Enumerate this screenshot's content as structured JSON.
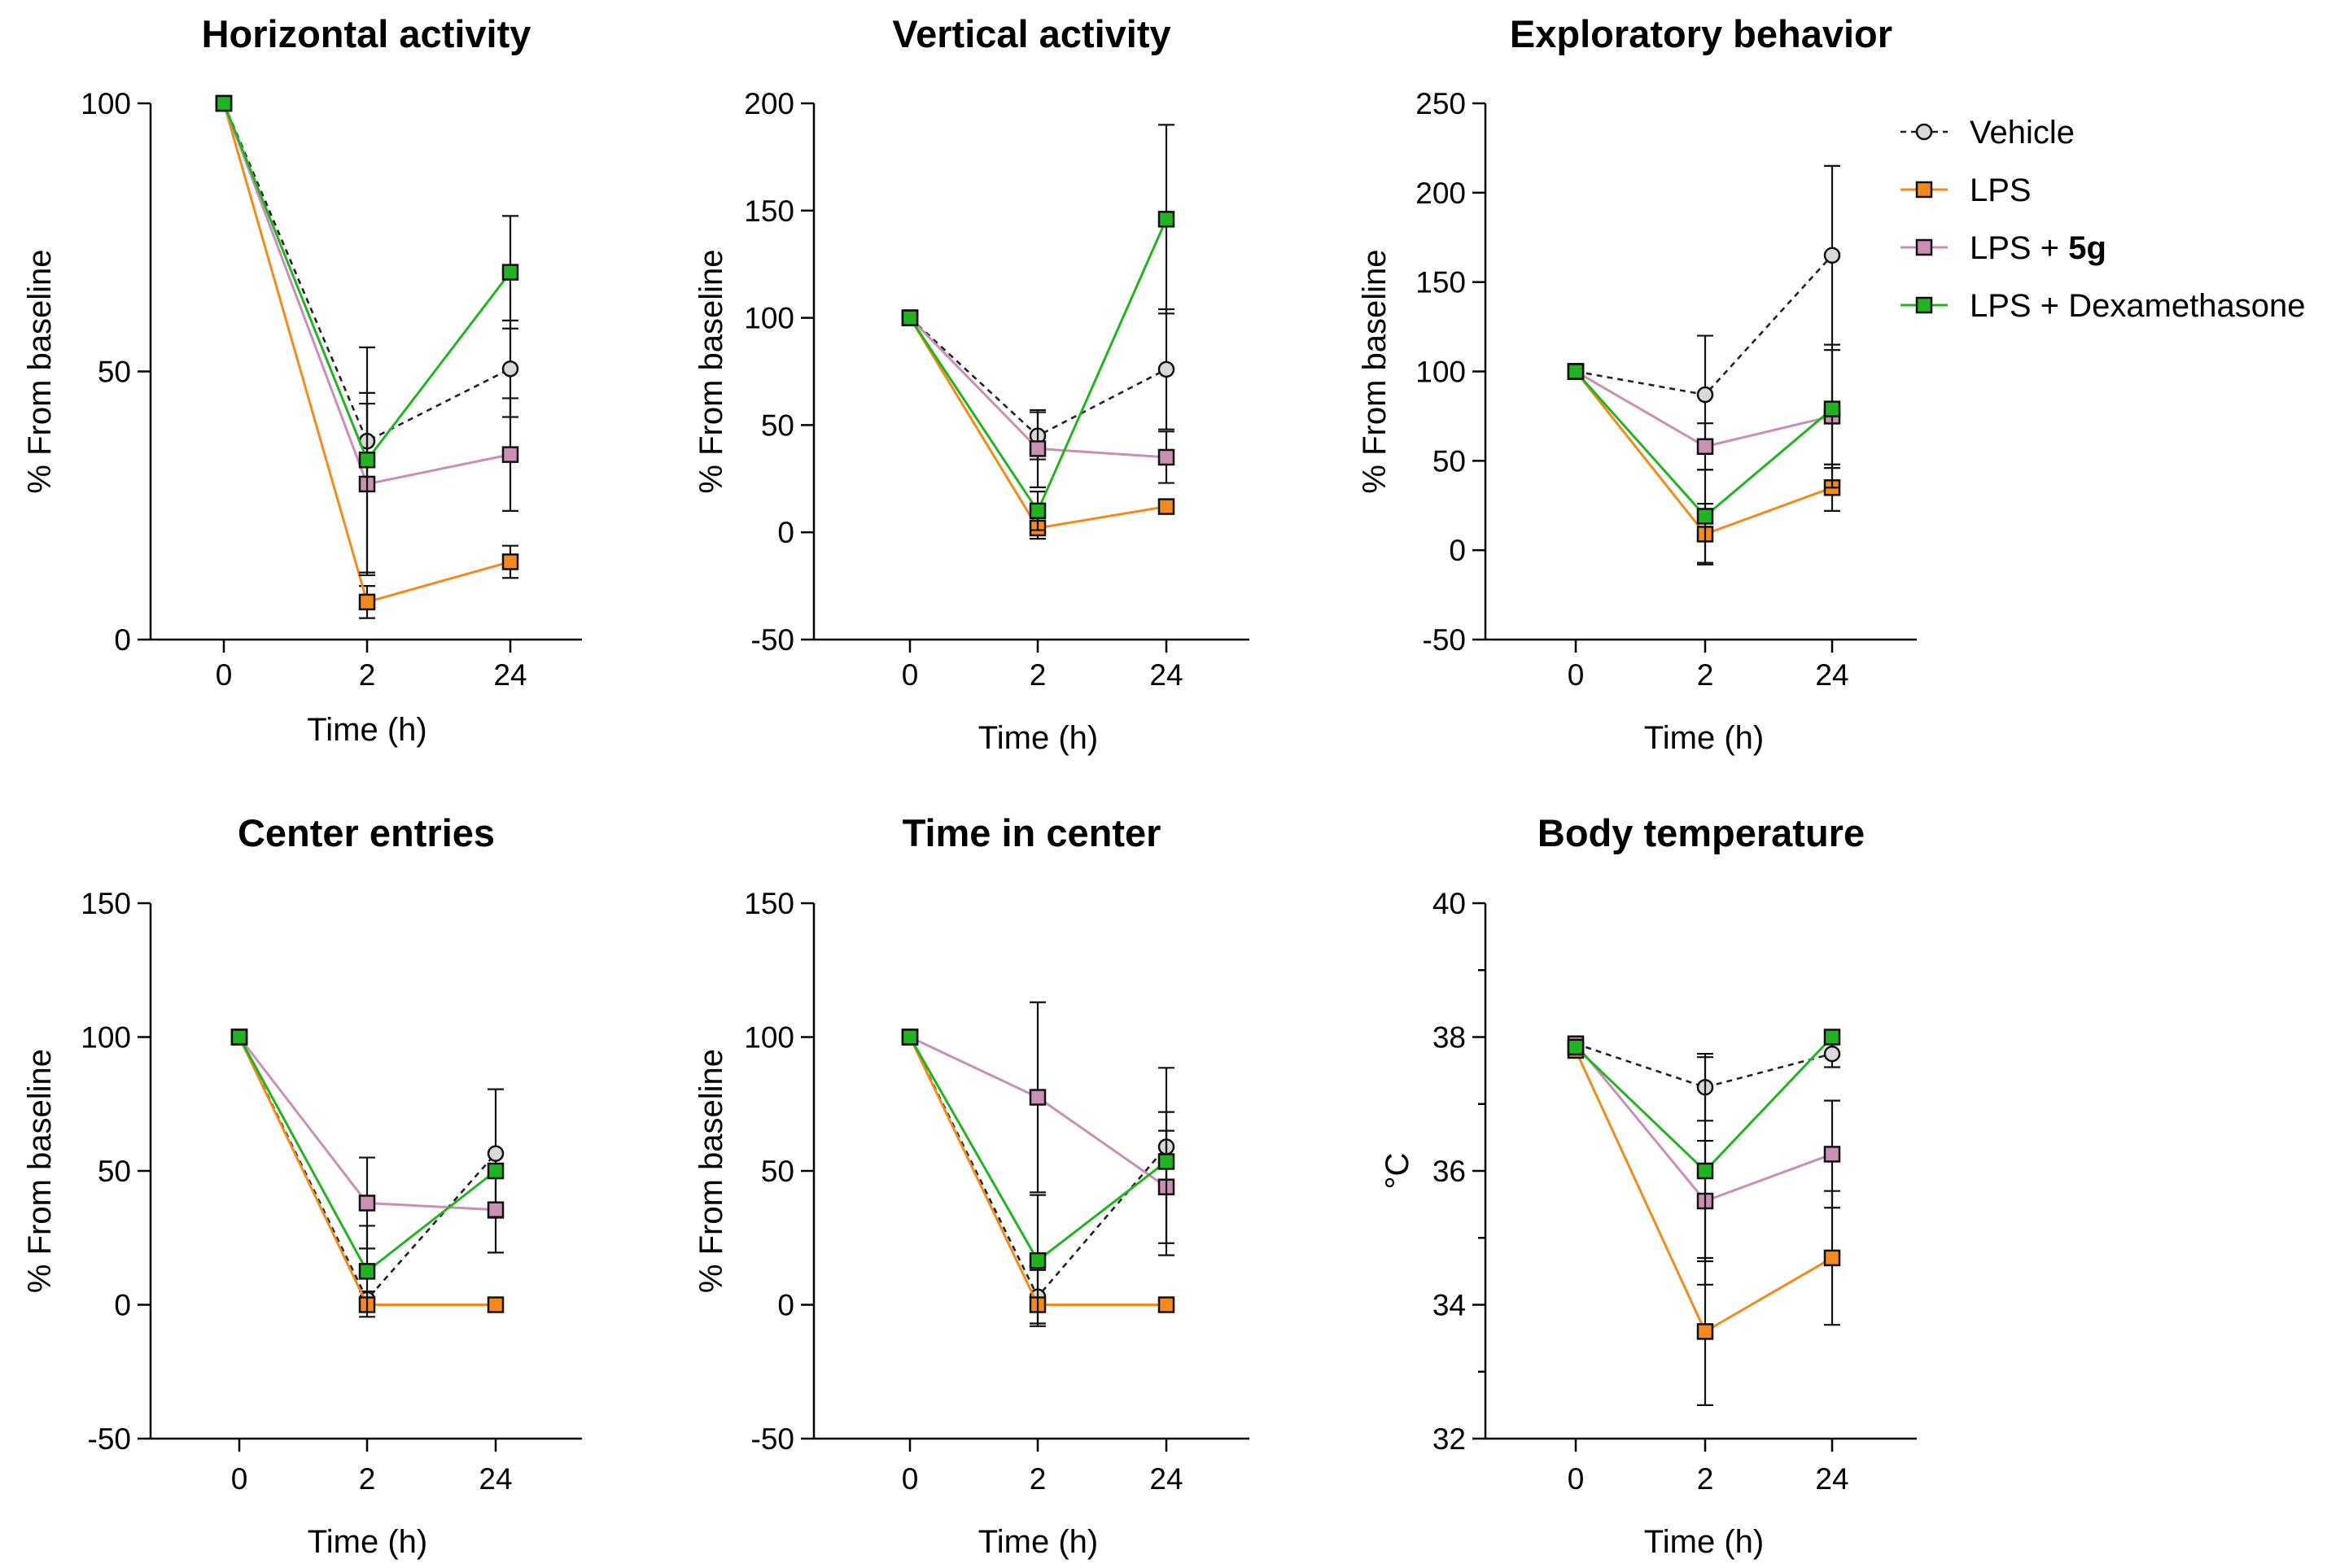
{
  "legend": [
    {
      "name": "Vehicle",
      "prefix": "Vehicle",
      "bold": "",
      "color": "#222222",
      "fill": "#d9d9d9",
      "marker": "circle",
      "dashed": true
    },
    {
      "name": "LPS",
      "prefix": "LPS",
      "bold": "",
      "color": "#f28a1c",
      "fill": "#f28a1c",
      "marker": "square",
      "dashed": false
    },
    {
      "name": "LPS + 5g",
      "prefix": "LPS + ",
      "bold": "5g",
      "color": "#c98fb4",
      "fill": "#c98fb4",
      "marker": "square",
      "dashed": false
    },
    {
      "name": "LPS + Dexamethasone",
      "prefix": "LPS + Dexamethasone",
      "bold": "",
      "color": "#22b322",
      "fill": "#22b322",
      "marker": "square",
      "dashed": false
    }
  ],
  "chart_data": [
    {
      "type": "line",
      "title": "Horizontal activity",
      "xlabel": "Time (h)",
      "ylabel": "% From baseline",
      "categories": [
        "0",
        "2",
        "24"
      ],
      "ylim": [
        0,
        100
      ],
      "yticks": [
        0,
        50,
        100
      ],
      "minor_ticks": [],
      "series": [
        {
          "name": "Vehicle",
          "values": [
            100,
            37,
            50.5
          ],
          "err": [
            0,
            7,
            9
          ]
        },
        {
          "name": "LPS",
          "values": [
            100,
            7,
            14.5
          ],
          "err": [
            0,
            3,
            3
          ]
        },
        {
          "name": "LPS + 5g",
          "values": [
            100,
            29,
            34.5
          ],
          "err": [
            0,
            17,
            10.5
          ]
        },
        {
          "name": "LPS + Dexamethasone",
          "values": [
            100,
            33.5,
            68.5
          ],
          "err": [
            0,
            21,
            10.5
          ]
        }
      ]
    },
    {
      "type": "line",
      "title": "Vertical activity",
      "xlabel": "Time (h)",
      "ylabel": "% From baseline",
      "categories": [
        "0",
        "2",
        "24"
      ],
      "ylim": [
        -50,
        200
      ],
      "yticks": [
        -50,
        0,
        50,
        100,
        150,
        200
      ],
      "minor_ticks": [],
      "series": [
        {
          "name": "Vehicle",
          "values": [
            100,
            45,
            76
          ],
          "err": [
            0,
            11,
            28
          ]
        },
        {
          "name": "LPS",
          "values": [
            100,
            2,
            12
          ],
          "err": [
            0,
            5,
            0
          ]
        },
        {
          "name": "LPS + 5g",
          "values": [
            100,
            39,
            35
          ],
          "err": [
            0,
            18,
            12
          ]
        },
        {
          "name": "LPS + Dexamethasone",
          "values": [
            100,
            10,
            146
          ],
          "err": [
            0,
            9,
            44
          ]
        }
      ]
    },
    {
      "type": "line",
      "title": "Exploratory behavior",
      "xlabel": "Time (h)",
      "ylabel": "% From baseline",
      "categories": [
        "0",
        "2",
        "24"
      ],
      "ylim": [
        -50,
        250
      ],
      "yticks": [
        -50,
        0,
        50,
        100,
        150,
        200,
        250
      ],
      "minor_ticks": [],
      "series": [
        {
          "name": "Vehicle",
          "values": [
            100,
            87,
            165
          ],
          "err": [
            0,
            33,
            50
          ]
        },
        {
          "name": "LPS",
          "values": [
            100,
            9,
            35
          ],
          "err": [
            0,
            17,
            13
          ]
        },
        {
          "name": "LPS + 5g",
          "values": [
            100,
            58,
            75
          ],
          "err": [
            0,
            13,
            40
          ]
        },
        {
          "name": "LPS + Dexamethasone",
          "values": [
            100,
            19,
            79
          ],
          "err": [
            0,
            26,
            33
          ]
        }
      ]
    },
    {
      "type": "line",
      "title": "Center entries",
      "xlabel": "Time (h)",
      "ylabel": "% From baseline",
      "categories": [
        "0",
        "2",
        "24"
      ],
      "ylim": [
        -50,
        150
      ],
      "yticks": [
        -50,
        0,
        50,
        100,
        150
      ],
      "minor_ticks": [],
      "series": [
        {
          "name": "Vehicle",
          "values": [
            100,
            2,
            56.5
          ],
          "err": [
            0,
            3,
            24
          ]
        },
        {
          "name": "LPS",
          "values": [
            100,
            0,
            0
          ],
          "err": [
            0,
            0,
            0
          ]
        },
        {
          "name": "LPS + 5g",
          "values": [
            100,
            38,
            35.5
          ],
          "err": [
            0,
            17,
            16
          ]
        },
        {
          "name": "LPS + Dexamethasone",
          "values": [
            100,
            12.5,
            50
          ],
          "err": [
            0,
            17,
            0
          ]
        }
      ]
    },
    {
      "type": "line",
      "title": "Time in center",
      "xlabel": "Time (h)",
      "ylabel": "% From baseline",
      "categories": [
        "0",
        "2",
        "24"
      ],
      "ylim": [
        -50,
        150
      ],
      "yticks": [
        -50,
        0,
        50,
        100,
        150
      ],
      "minor_ticks": [],
      "series": [
        {
          "name": "Vehicle",
          "values": [
            100,
            3,
            59
          ],
          "err": [
            0,
            10,
            13
          ]
        },
        {
          "name": "LPS",
          "values": [
            100,
            0,
            0
          ],
          "err": [
            0,
            0,
            0
          ]
        },
        {
          "name": "LPS + 5g",
          "values": [
            100,
            77.5,
            44
          ],
          "err": [
            0,
            35.5,
            21
          ]
        },
        {
          "name": "LPS + Dexamethasone",
          "values": [
            100,
            16.5,
            53.5
          ],
          "err": [
            0,
            24.5,
            35
          ]
        }
      ]
    },
    {
      "type": "line",
      "title": "Body temperature",
      "xlabel": "Time (h)",
      "ylabel": "°C",
      "categories": [
        "0",
        "2",
        "24"
      ],
      "ylim": [
        32,
        40
      ],
      "yticks": [
        32,
        34,
        36,
        38,
        40
      ],
      "minor_ticks": [
        33,
        35,
        37,
        39
      ],
      "series": [
        {
          "name": "Vehicle",
          "values": [
            37.9,
            37.25,
            37.75
          ],
          "err": [
            0,
            0.5,
            0.2
          ]
        },
        {
          "name": "LPS",
          "values": [
            37.8,
            33.6,
            34.7
          ],
          "err": [
            0,
            1.1,
            1
          ]
        },
        {
          "name": "LPS + 5g",
          "values": [
            37.9,
            35.55,
            36.25
          ],
          "err": [
            0,
            0.9,
            0.8
          ]
        },
        {
          "name": "LPS + Dexamethasone",
          "values": [
            37.85,
            36,
            38
          ],
          "err": [
            0,
            1.7,
            0
          ]
        }
      ]
    }
  ]
}
